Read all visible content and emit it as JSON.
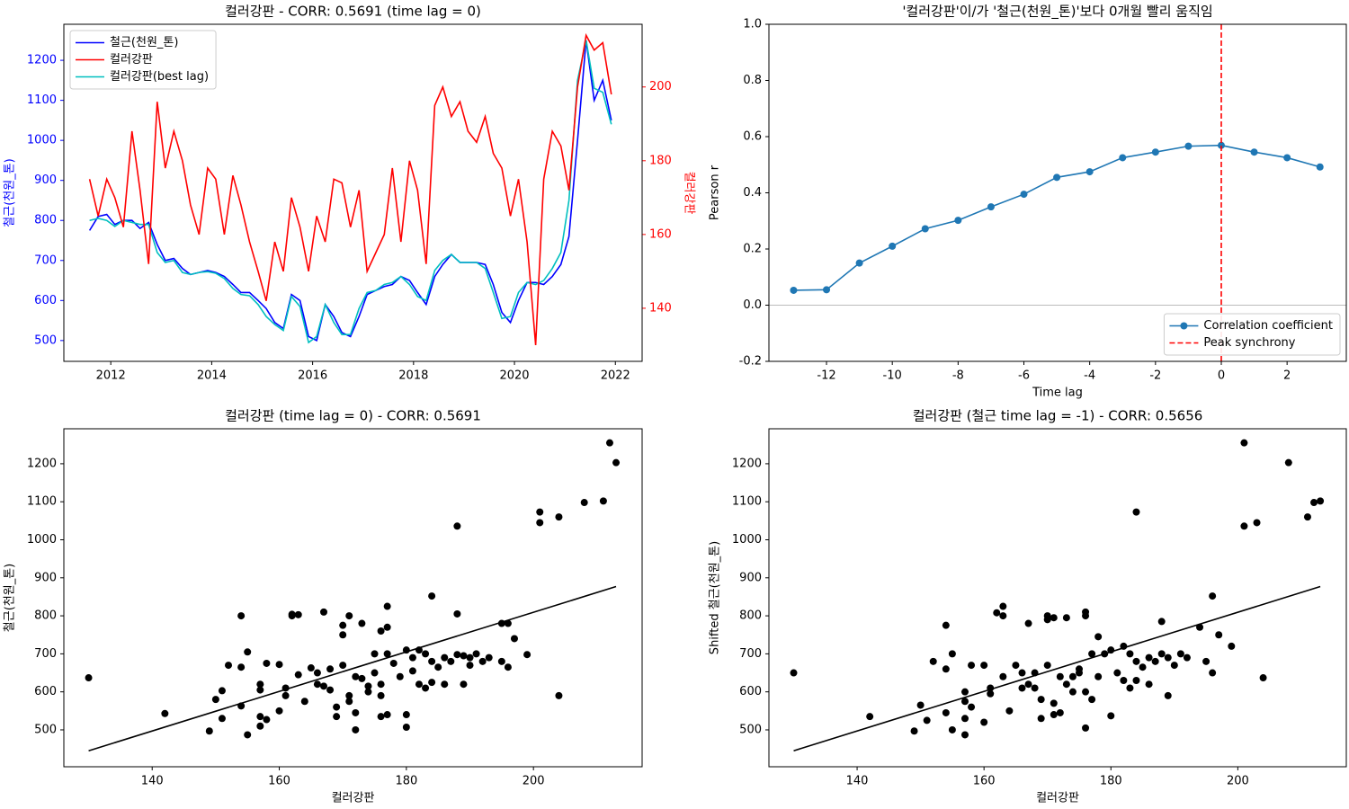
{
  "chart_data": [
    {
      "type": "line",
      "title": "컬러강판 - CORR: 0.5691 (time lag = 0)",
      "ylabel": "철근(천원_톤)",
      "y2label": "컬러강판",
      "x": [
        2011.58,
        2011.75,
        2011.92,
        2012.08,
        2012.25,
        2012.42,
        2012.58,
        2012.75,
        2012.92,
        2013.08,
        2013.25,
        2013.42,
        2013.58,
        2013.75,
        2013.92,
        2014.08,
        2014.25,
        2014.42,
        2014.58,
        2014.75,
        2014.92,
        2015.08,
        2015.25,
        2015.42,
        2015.58,
        2015.75,
        2015.92,
        2016.08,
        2016.25,
        2016.42,
        2016.58,
        2016.75,
        2016.92,
        2017.08,
        2017.25,
        2017.42,
        2017.58,
        2017.75,
        2017.92,
        2018.08,
        2018.25,
        2018.42,
        2018.58,
        2018.75,
        2018.92,
        2019.08,
        2019.25,
        2019.42,
        2019.58,
        2019.75,
        2019.92,
        2020.08,
        2020.25,
        2020.42,
        2020.58,
        2020.75,
        2020.92,
        2021.08,
        2021.25,
        2021.42,
        2021.58,
        2021.75,
        2021.92
      ],
      "series": [
        {
          "name": "철근(천원_톤)",
          "color": "#0000ff",
          "values": [
            775,
            810,
            815,
            790,
            800,
            800,
            780,
            795,
            740,
            700,
            705,
            680,
            665,
            670,
            675,
            670,
            660,
            640,
            620,
            620,
            600,
            580,
            545,
            530,
            615,
            600,
            510,
            500,
            590,
            560,
            520,
            510,
            560,
            615,
            625,
            635,
            640,
            660,
            650,
            620,
            590,
            660,
            690,
            715,
            695,
            695,
            695,
            690,
            640,
            570,
            545,
            600,
            645,
            645,
            640,
            660,
            690,
            760,
            1000,
            1250,
            1100,
            1150,
            1050
          ]
        },
        {
          "name": "컬러강판",
          "color": "#ff0000",
          "axis": "y2",
          "values": [
            175,
            165,
            175,
            170,
            162,
            188,
            172,
            152,
            196,
            178,
            188,
            180,
            168,
            160,
            178,
            175,
            160,
            176,
            168,
            158,
            150,
            142,
            158,
            150,
            170,
            162,
            150,
            165,
            158,
            175,
            174,
            162,
            172,
            150,
            155,
            160,
            178,
            158,
            180,
            172,
            152,
            195,
            200,
            192,
            196,
            188,
            185,
            192,
            182,
            178,
            165,
            175,
            158,
            130,
            175,
            188,
            184,
            172,
            200,
            214,
            210,
            212,
            198
          ]
        },
        {
          "name": "컬러강판(best lag)",
          "color": "#00bfbf",
          "values": [
            800,
            805,
            800,
            785,
            800,
            795,
            790,
            790,
            720,
            695,
            700,
            670,
            665,
            670,
            672,
            668,
            655,
            630,
            615,
            612,
            590,
            560,
            540,
            525,
            610,
            585,
            495,
            510,
            590,
            545,
            515,
            515,
            580,
            620,
            625,
            640,
            645,
            660,
            640,
            610,
            600,
            675,
            700,
            715,
            695,
            695,
            695,
            680,
            620,
            555,
            560,
            620,
            645,
            640,
            650,
            680,
            720,
            850,
            1150,
            1250,
            1130,
            1120,
            1040
          ]
        }
      ],
      "xlim": [
        2011.07,
        2022.53
      ],
      "xticks": [
        2012,
        2014,
        2016,
        2018,
        2020,
        2022
      ],
      "ylim": [
        448,
        1290
      ],
      "yticks": [
        500,
        600,
        700,
        800,
        900,
        1000,
        1100,
        1200
      ],
      "y2lim": [
        125.6,
        217
      ],
      "y2ticks": [
        140,
        160,
        180,
        200
      ],
      "legend": "upper left"
    },
    {
      "type": "line",
      "title": "'컬러강판'이/가 '철근(천원_톤)'보다 0개월 빨리 움직임",
      "xlabel": "Time lag",
      "ylabel": "Pearson r",
      "x": [
        -13,
        -12,
        -11,
        -10,
        -9,
        -8,
        -7,
        -6,
        -5,
        -4,
        -3,
        -2,
        -1,
        0,
        1,
        2,
        3
      ],
      "series": [
        {
          "name": "Correlation coefficient",
          "color": "#1f77b4",
          "marker": "o",
          "values": [
            0.053,
            0.055,
            0.15,
            0.21,
            0.272,
            0.302,
            0.35,
            0.395,
            0.455,
            0.475,
            0.525,
            0.545,
            0.566,
            0.569,
            0.545,
            0.525,
            0.492
          ]
        }
      ],
      "peak": {
        "name": "Peak synchrony",
        "x": 0,
        "color": "#ff0000"
      },
      "xlim": [
        -13.75,
        3.8
      ],
      "xticks": [
        -12,
        -10,
        -8,
        -6,
        -4,
        -2,
        0,
        2
      ],
      "ylim": [
        -0.2,
        1.0
      ],
      "yticks": [
        -0.2,
        {
          "value": 0,
          "label": "0.0"
        },
        0.2,
        0.4,
        0.6,
        0.8,
        {
          "value": 1,
          "label": "1.0"
        }
      ],
      "legend": "lower right"
    },
    {
      "type": "scatter",
      "title": "컬러강판 (time lag = 0) - CORR: 0.5691",
      "xlabel": "컬러강판",
      "ylabel": "철근(천원_톤)",
      "color": "#000000",
      "x": [
        130,
        142,
        149,
        150,
        151,
        151,
        152,
        154,
        154,
        154,
        155,
        155,
        157,
        157,
        157,
        157,
        158,
        158,
        160,
        160,
        161,
        161,
        162,
        162,
        163,
        163,
        164,
        165,
        166,
        166,
        167,
        167,
        168,
        168,
        169,
        169,
        170,
        170,
        170,
        171,
        171,
        171,
        172,
        172,
        172,
        173,
        173,
        174,
        174,
        175,
        175,
        176,
        176,
        176,
        176,
        177,
        177,
        177,
        177,
        178,
        179,
        180,
        180,
        180,
        181,
        181,
        182,
        182,
        183,
        183,
        184,
        184,
        184,
        185,
        186,
        186,
        187,
        188,
        188,
        188,
        189,
        189,
        190,
        190,
        191,
        192,
        193,
        195,
        195,
        196,
        196,
        197,
        199,
        201,
        201,
        204,
        204,
        208,
        211,
        212,
        213
      ],
      "y": [
        637,
        543,
        497,
        580,
        603,
        530,
        670,
        800,
        665,
        563,
        705,
        487,
        620,
        605,
        535,
        510,
        527,
        675,
        672,
        550,
        610,
        590,
        804,
        800,
        803,
        645,
        575,
        663,
        620,
        650,
        810,
        615,
        660,
        605,
        560,
        535,
        775,
        750,
        670,
        800,
        590,
        575,
        500,
        545,
        640,
        780,
        635,
        600,
        615,
        650,
        700,
        760,
        620,
        590,
        535,
        825,
        770,
        700,
        540,
        675,
        640,
        710,
        540,
        507,
        690,
        655,
        710,
        620,
        610,
        700,
        852,
        680,
        625,
        665,
        690,
        620,
        680,
        698,
        805,
        1036,
        620,
        695,
        670,
        690,
        700,
        680,
        690,
        780,
        680,
        665,
        780,
        740,
        698,
        1073,
        1045,
        1060,
        590,
        1098,
        1102,
        1255,
        1203
      ],
      "fit": {
        "x": [
          130,
          213
        ],
        "y": [
          445,
          877
        ],
        "color": "#000000"
      },
      "xlim": [
        126.1,
        217.1
      ],
      "xticks": [
        140,
        160,
        180,
        200
      ],
      "ylim": [
        403,
        1292
      ],
      "yticks": [
        500,
        600,
        700,
        800,
        900,
        1000,
        1100,
        1200
      ]
    },
    {
      "type": "scatter",
      "title": "컬러강판 (철근 time lag = -1) - CORR: 0.5656",
      "xlabel": "컬러강판",
      "ylabel": "Shifted 철근(천원_톤)",
      "color": "#000000",
      "x": [
        130,
        142,
        149,
        150,
        151,
        152,
        154,
        154,
        154,
        155,
        155,
        157,
        157,
        157,
        157,
        158,
        158,
        160,
        160,
        161,
        161,
        162,
        163,
        163,
        163,
        164,
        165,
        166,
        166,
        167,
        167,
        168,
        168,
        169,
        169,
        170,
        170,
        170,
        171,
        171,
        171,
        172,
        172,
        173,
        173,
        174,
        174,
        175,
        175,
        176,
        176,
        176,
        176,
        177,
        177,
        178,
        178,
        179,
        180,
        180,
        181,
        182,
        182,
        183,
        183,
        184,
        184,
        184,
        185,
        186,
        186,
        187,
        188,
        188,
        189,
        189,
        190,
        191,
        192,
        194,
        195,
        196,
        196,
        197,
        199,
        201,
        201,
        203,
        204,
        208,
        211,
        212,
        213
      ],
      "y": [
        650,
        535,
        497,
        565,
        525,
        680,
        775,
        660,
        545,
        700,
        500,
        600,
        575,
        530,
        487,
        560,
        670,
        670,
        520,
        610,
        595,
        808,
        800,
        825,
        640,
        550,
        670,
        610,
        650,
        780,
        620,
        650,
        610,
        530,
        580,
        800,
        790,
        670,
        795,
        570,
        540,
        545,
        640,
        795,
        620,
        600,
        640,
        660,
        650,
        810,
        800,
        600,
        505,
        700,
        580,
        745,
        640,
        700,
        710,
        537,
        650,
        720,
        630,
        610,
        700,
        1073,
        680,
        630,
        665,
        690,
        620,
        680,
        700,
        785,
        590,
        690,
        670,
        700,
        690,
        770,
        680,
        650,
        852,
        750,
        720,
        1036,
        1255,
        1045,
        637,
        1203,
        1060,
        1098,
        1102
      ],
      "fit": {
        "x": [
          130,
          213
        ],
        "y": [
          445,
          877
        ],
        "color": "#000000"
      },
      "xlim": [
        126.1,
        217.1
      ],
      "xticks": [
        140,
        160,
        180,
        200
      ],
      "ylim": [
        403,
        1292
      ],
      "yticks": [
        500,
        600,
        700,
        800,
        900,
        1000,
        1100,
        1200
      ]
    }
  ]
}
